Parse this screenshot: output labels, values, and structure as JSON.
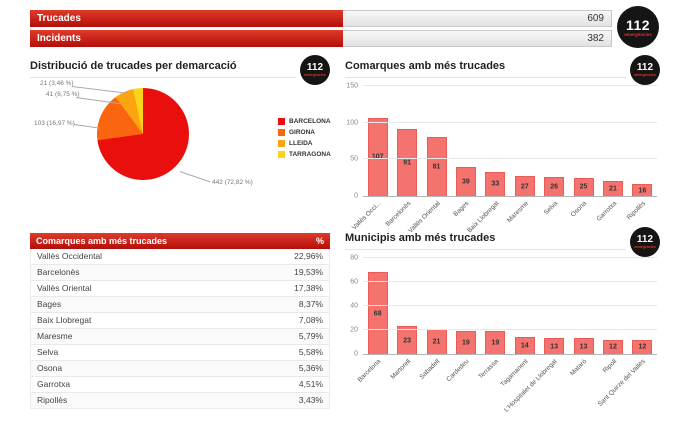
{
  "logo": {
    "number": "112",
    "subtitle": "emergències"
  },
  "top_stats": [
    {
      "label": "Trucades",
      "value": "609"
    },
    {
      "label": "Incidents",
      "value": "382"
    }
  ],
  "panels": {
    "pie": {
      "title": "Distribució de trucades per demarcació"
    },
    "comarques_chart": {
      "title": "Comarques amb més trucades"
    },
    "municipis_chart": {
      "title": "Municipis amb més trucades"
    }
  },
  "table": {
    "title": "Comarques amb més trucades",
    "value_header": "%",
    "rows": [
      {
        "name": "Vallès Occidental",
        "pct": "22,96%"
      },
      {
        "name": "Barcelonès",
        "pct": "19,53%"
      },
      {
        "name": "Vallès Oriental",
        "pct": "17,38%"
      },
      {
        "name": "Bages",
        "pct": "8,37%"
      },
      {
        "name": "Baix Llobregat",
        "pct": "7,08%"
      },
      {
        "name": "Maresme",
        "pct": "5,79%"
      },
      {
        "name": "Selva",
        "pct": "5,58%"
      },
      {
        "name": "Osona",
        "pct": "5,36%"
      },
      {
        "name": "Garrotxa",
        "pct": "4,51%"
      },
      {
        "name": "Ripollès",
        "pct": "3,43%"
      }
    ]
  },
  "chart_data": [
    {
      "type": "pie",
      "title": "Distribució de trucades per demarcació",
      "labels": [
        "BARCELONA",
        "GIRONA",
        "LLEIDA",
        "TARRAGONA"
      ],
      "values": [
        442,
        103,
        41,
        21
      ],
      "value_labels": [
        "442 (72,82 %)",
        "103 (16,97 %)",
        "41 (6,75 %)",
        "21 (3,46 %)"
      ],
      "colors": [
        "#e90f0c",
        "#f9660f",
        "#fda412",
        "#f8d51a"
      ],
      "legend_position": "right"
    },
    {
      "type": "bar",
      "title": "Comarques amb més trucades",
      "categories": [
        "Vallès Occi...",
        "Barcelonès",
        "Vallès Oriental",
        "Bages",
        "Baix Llobregat",
        "Maresme",
        "Selva",
        "Osona",
        "Garrotxa",
        "Ripollès"
      ],
      "values": [
        107,
        91,
        81,
        39,
        33,
        27,
        26,
        25,
        21,
        16
      ],
      "ylim": [
        0,
        150
      ],
      "yticks": [
        0,
        50,
        100,
        150
      ],
      "bar_color": "#f4736e",
      "bar_border": "#e95c55",
      "grid": true,
      "legend_position": "none"
    },
    {
      "type": "bar",
      "title": "Municipis amb més trucades",
      "categories": [
        "Barcelona",
        "Martorell",
        "Sabadell",
        "Cardedeu",
        "Terrassa",
        "Tagamanent",
        "L'Hospitalet de Llobregat",
        "Mataró",
        "Ripoll",
        "Sant Quirze del Vallès"
      ],
      "values": [
        68,
        23,
        21,
        19,
        19,
        14,
        13,
        13,
        12,
        12
      ],
      "ylim": [
        0,
        80
      ],
      "yticks": [
        0,
        20,
        40,
        60,
        80
      ],
      "bar_color": "#f4736e",
      "bar_border": "#e95c55",
      "grid": true,
      "legend_position": "none"
    }
  ]
}
